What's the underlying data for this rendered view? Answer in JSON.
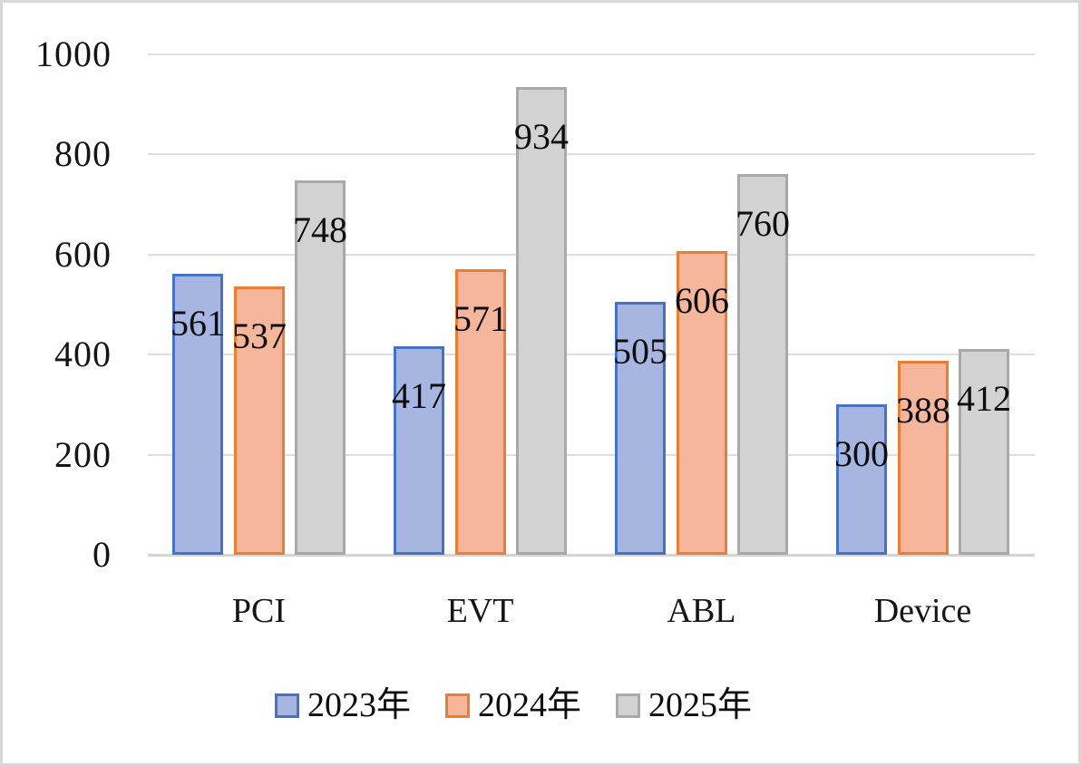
{
  "chart": {
    "background_color": "#ffffff",
    "frame_border_color": "#d8d8d8",
    "gridline_color": "#dedede",
    "axis_line_color": "#d4d4d4",
    "text_color": "#0d0d0d"
  },
  "chart_data": {
    "type": "bar",
    "title": "",
    "xlabel": "",
    "ylabel": "",
    "categories": [
      "PCI",
      "EVT",
      "ABL",
      "Device"
    ],
    "series": [
      {
        "name": "2023年",
        "values": [
          561,
          417,
          505,
          300
        ],
        "fill": "#a7b6e1",
        "border": "#4472c4"
      },
      {
        "name": "2024年",
        "values": [
          537,
          571,
          606,
          388
        ],
        "fill": "#f6b69b",
        "border": "#ed7d31"
      },
      {
        "name": "2025年",
        "values": [
          748,
          934,
          760,
          412
        ],
        "fill": "#d2d2d2",
        "border": "#a9a9a9"
      }
    ],
    "ylim": [
      0,
      1000
    ],
    "y_ticks": [
      0,
      200,
      400,
      600,
      800,
      1000
    ],
    "grid": true,
    "data_labels": true,
    "legend_position": "bottom"
  }
}
